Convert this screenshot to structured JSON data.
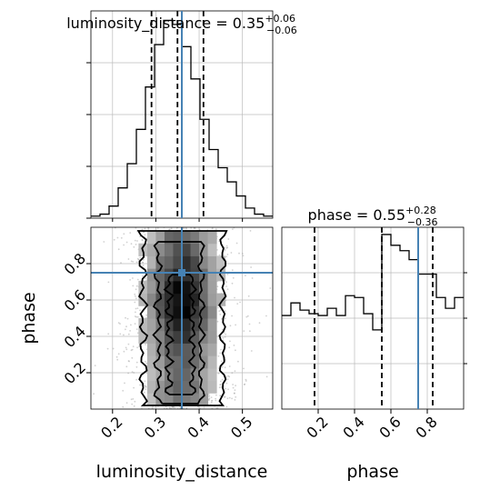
{
  "chart_data": [
    {
      "type": "histogram",
      "panel": "luminosity_distance marginal",
      "title": {
        "param": "luminosity_distance",
        "median": "0.35",
        "plus": "+0.06",
        "minus": "−0.06"
      },
      "xlim": [
        0.15,
        0.57
      ],
      "bin_edges": [
        0.15,
        0.171,
        0.192,
        0.213,
        0.234,
        0.255,
        0.276,
        0.297,
        0.318,
        0.339,
        0.36,
        0.381,
        0.402,
        0.423,
        0.444,
        0.465,
        0.486,
        0.507,
        0.528,
        0.549,
        0.57
      ],
      "counts": [
        0.01,
        0.02,
        0.06,
        0.15,
        0.27,
        0.44,
        0.65,
        0.86,
        0.98,
        0.96,
        0.85,
        0.69,
        0.49,
        0.34,
        0.25,
        0.18,
        0.11,
        0.05,
        0.02,
        0.01
      ],
      "quantiles": [
        0.29,
        0.35,
        0.41
      ],
      "truth": 0.36,
      "y_ticks": 4,
      "grid": true
    },
    {
      "type": "histogram",
      "panel": "phase marginal",
      "title": {
        "param": "phase",
        "median": "0.55",
        "plus": "+0.28",
        "minus": "−0.36"
      },
      "xlim": [
        0.0,
        1.0
      ],
      "xticks": [
        "0.2",
        "0.4",
        "0.6",
        "0.8"
      ],
      "xlabel": "phase",
      "bin_edges": [
        0.0,
        0.05,
        0.1,
        0.15,
        0.2,
        0.25,
        0.3,
        0.35,
        0.4,
        0.45,
        0.5,
        0.55,
        0.6,
        0.65,
        0.7,
        0.75,
        0.8,
        0.85,
        0.9,
        0.95,
        1.0
      ],
      "counts": [
        0.52,
        0.59,
        0.55,
        0.53,
        0.52,
        0.56,
        0.52,
        0.63,
        0.62,
        0.53,
        0.44,
        0.97,
        0.91,
        0.88,
        0.83,
        0.75,
        0.75,
        0.62,
        0.56,
        0.62
      ],
      "quantiles": [
        0.18,
        0.55,
        0.83
      ],
      "truth": 0.75,
      "y_ticks": 4,
      "grid": true
    },
    {
      "type": "scatter",
      "panel": "2D posterior: luminosity_distance vs phase",
      "xlim": [
        0.15,
        0.57
      ],
      "ylim": [
        0.0,
        1.0
      ],
      "xticks": [
        "0.2",
        "0.3",
        "0.4",
        "0.5"
      ],
      "yticks": [
        "0.2",
        "0.4",
        "0.6",
        "0.8"
      ],
      "xlabel": "luminosity_distance",
      "ylabel": "phase",
      "samples_center": [
        0.36,
        0.5
      ],
      "samples_spread": [
        0.06,
        0.5
      ],
      "truth": [
        0.36,
        0.75
      ],
      "contours": [
        {
          "level": "outer",
          "x": [
            0.27,
            0.455
          ],
          "y": [
            0.02,
            0.98
          ]
        },
        {
          "level": "middle",
          "x": [
            0.305,
            0.405
          ],
          "y": [
            0.03,
            0.92
          ]
        },
        {
          "level": "inner",
          "x": [
            0.33,
            0.385
          ],
          "y": [
            0.08,
            0.74
          ]
        }
      ],
      "grid": true
    }
  ],
  "colors": {
    "truth": "#4682b4",
    "hist": "#000000",
    "grid": "#bbbbbb"
  }
}
